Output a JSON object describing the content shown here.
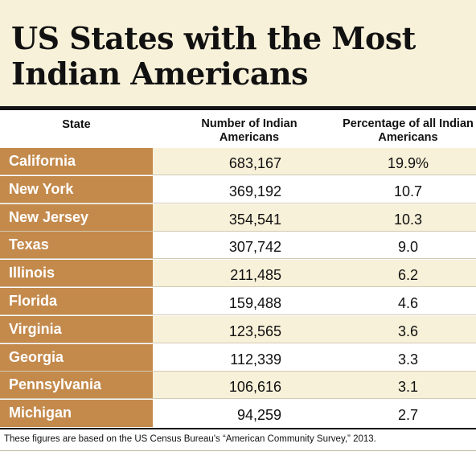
{
  "title": "US States with the Most Indian Americans",
  "columns": {
    "state": "State",
    "number": "Number of Indian Americans",
    "percentage": "Percentage of all Indian Americans"
  },
  "rows": [
    {
      "state": "California",
      "number": "683,167",
      "percentage": "19.9%"
    },
    {
      "state": "New York",
      "number": "369,192",
      "percentage": "10.7"
    },
    {
      "state": "New Jersey",
      "number": "354,541",
      "percentage": "10.3"
    },
    {
      "state": "Texas",
      "number": "307,742",
      "percentage": "9.0"
    },
    {
      "state": "Illinois",
      "number": "211,485",
      "percentage": "6.2"
    },
    {
      "state": "Florida",
      "number": "159,488",
      "percentage": "4.6"
    },
    {
      "state": "Virginia",
      "number": "123,565",
      "percentage": "3.6"
    },
    {
      "state": "Georgia",
      "number": "112,339",
      "percentage": "3.3"
    },
    {
      "state": "Pennsylvania",
      "number": "106,616",
      "percentage": "3.1"
    },
    {
      "state": "Michigan",
      "number": "94,259",
      "percentage": "2.7"
    }
  ],
  "footnote": "These figures are based on the US Census Bureau's “American Community Survey,” 2013.",
  "colors": {
    "title_background": "#f8f1d9",
    "state_column": "#c48a4c",
    "alt_row": "#f8f1d9",
    "rule": "#141414"
  },
  "chart_data": {
    "type": "table",
    "title": "US States with the Most Indian Americans",
    "columns": [
      "State",
      "Number of Indian Americans",
      "Percentage of all Indian Americans"
    ],
    "categories": [
      "California",
      "New York",
      "New Jersey",
      "Texas",
      "Illinois",
      "Florida",
      "Virginia",
      "Georgia",
      "Pennsylvania",
      "Michigan"
    ],
    "series": [
      {
        "name": "Number of Indian Americans",
        "values": [
          683167,
          369192,
          354541,
          307742,
          211485,
          159488,
          123565,
          112339,
          106616,
          94259
        ]
      },
      {
        "name": "Percentage of all Indian Americans",
        "values": [
          19.9,
          10.7,
          10.3,
          9.0,
          6.2,
          4.6,
          3.6,
          3.3,
          3.1,
          2.7
        ]
      }
    ]
  }
}
